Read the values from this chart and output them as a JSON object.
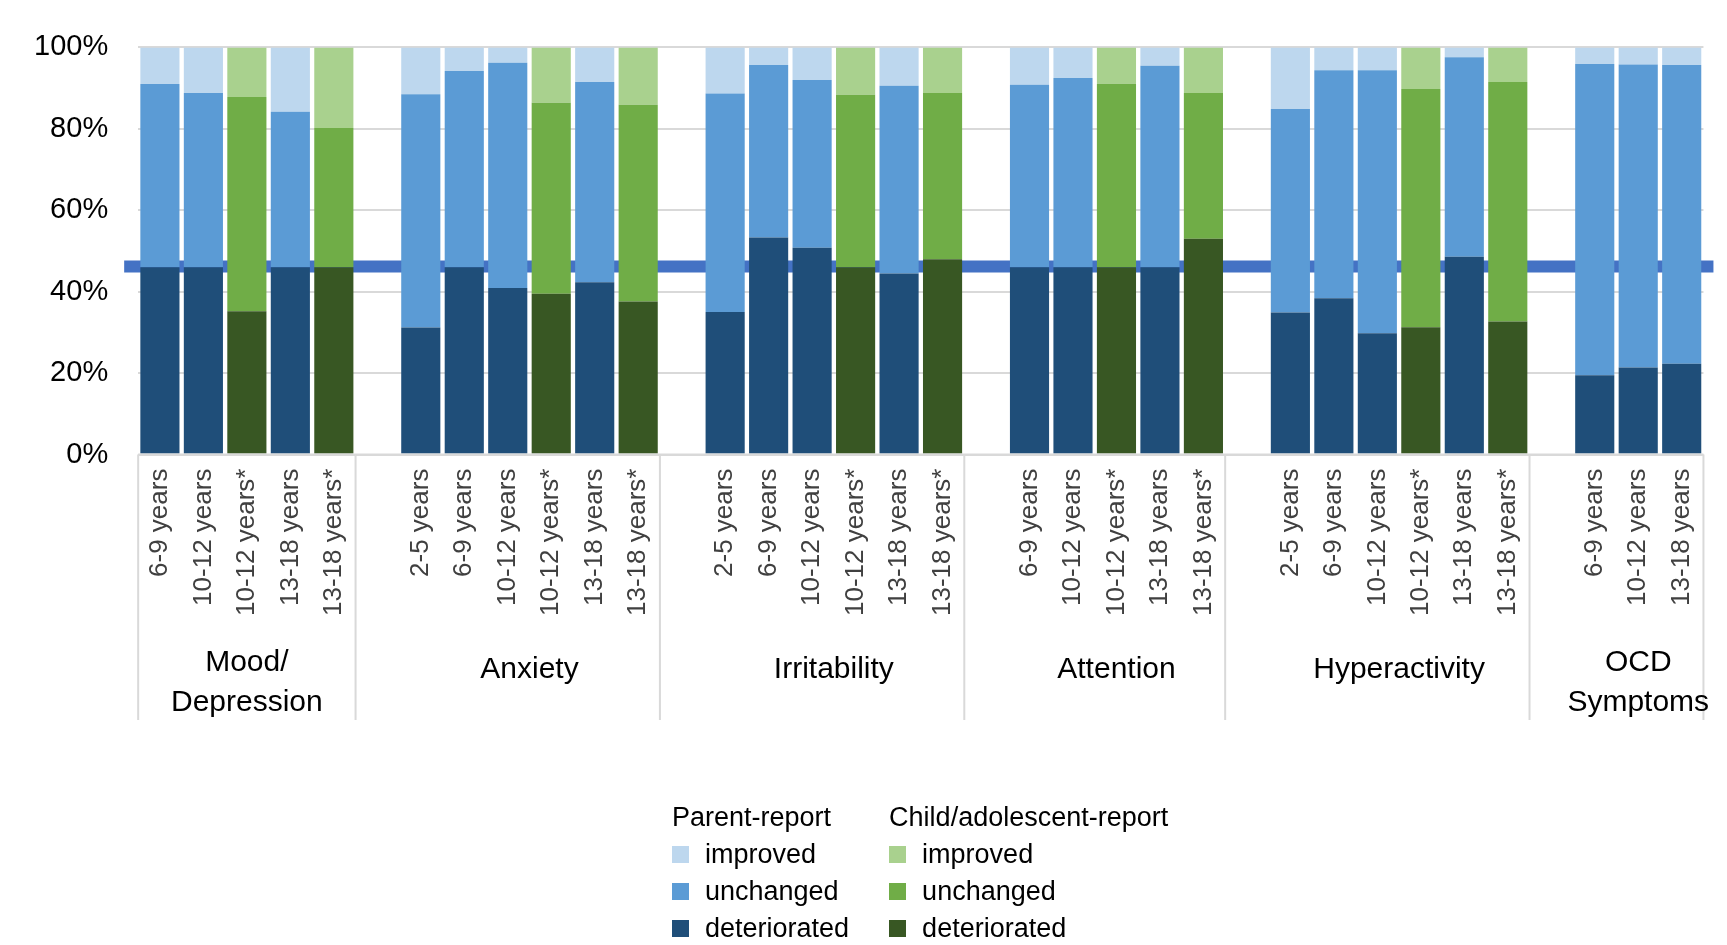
{
  "chart_data": {
    "type": "bar",
    "stacked": true,
    "grid": "y",
    "legend": "bottom",
    "categories": [
      "6-9 years",
      "10-12 years",
      "10-12 years*",
      "13-18 years",
      "13-18 years*",
      null,
      "2-5 years",
      "6-9 years",
      "10-12 years",
      "10-12 years*",
      "13-18 years",
      "13-18 years*",
      null,
      "2-5 years",
      "6-9 years",
      "10-12 years",
      "10-12 years*",
      "13-18 years",
      "13-18 years*",
      null,
      "6-9 years",
      "10-12 years",
      "10-12 years*",
      "13-18 years",
      "13-18 years*",
      null,
      "2-5 years",
      "6-9 years",
      "10-12 years",
      "10-12 years*",
      "13-18 years",
      "13-18 years*",
      null,
      "6-9 years",
      "10-12 years",
      "13-18 years"
    ],
    "series": [
      {
        "name": "deteriorated",
        "color": "#1f4e79",
        "values": [
          46,
          46,
          null,
          46,
          null,
          null,
          31.2,
          46,
          40.9,
          null,
          42.3,
          null,
          null,
          35,
          53.3,
          50.8,
          null,
          44.5,
          null,
          null,
          46,
          46,
          null,
          46,
          null,
          null,
          34.9,
          38.4,
          29.8,
          null,
          48.6,
          null,
          null,
          19.5,
          21.4,
          22.3
        ]
      },
      {
        "name": "unchanged",
        "color": "#5b9bd5",
        "values": [
          45,
          42.8,
          null,
          38.2,
          null,
          null,
          57.3,
          48.2,
          55.3,
          null,
          49.2,
          null,
          null,
          53.7,
          42.4,
          41.2,
          null,
          46.1,
          null,
          null,
          44.8,
          46.5,
          null,
          49.5,
          null,
          null,
          50,
          56,
          64.6,
          null,
          49,
          null,
          null,
          76.4,
          74.4,
          73.4
        ]
      },
      {
        "name": "improved",
        "color": "#bdd7ee",
        "values": [
          9,
          11.2,
          null,
          15.8,
          null,
          null,
          11.5,
          5.8,
          3.8,
          null,
          8.5,
          null,
          null,
          11.3,
          4.3,
          8,
          null,
          9.4,
          null,
          null,
          9.2,
          7.5,
          null,
          4.5,
          null,
          null,
          15.1,
          5.6,
          5.6,
          null,
          2.4,
          null,
          null,
          4.1,
          4.2,
          4.3
        ]
      },
      {
        "name": "deteriorated",
        "color": "#385723",
        "values": [
          null,
          null,
          35.2,
          null,
          46,
          null,
          null,
          null,
          null,
          39.5,
          null,
          37.6,
          null,
          null,
          null,
          null,
          46,
          null,
          48,
          null,
          null,
          null,
          46,
          null,
          53,
          null,
          null,
          null,
          null,
          31.3,
          null,
          32.7,
          null,
          null,
          null,
          null
        ]
      },
      {
        "name": "unchanged",
        "color": "#70ad47",
        "values": [
          null,
          null,
          52.6,
          null,
          34.2,
          null,
          null,
          null,
          null,
          46.9,
          null,
          48.3,
          null,
          null,
          null,
          null,
          42.4,
          null,
          40.8,
          null,
          null,
          null,
          45.1,
          null,
          35.8,
          null,
          null,
          null,
          null,
          58.5,
          null,
          58.8,
          null,
          null,
          null,
          null
        ]
      },
      {
        "name": "improved",
        "color": "#a9d18e",
        "values": [
          null,
          null,
          12.2,
          null,
          19.8,
          null,
          null,
          null,
          null,
          13.6,
          null,
          14.1,
          null,
          null,
          null,
          null,
          11.6,
          null,
          11.2,
          null,
          null,
          null,
          8.9,
          null,
          11.2,
          null,
          null,
          null,
          null,
          10.2,
          null,
          8.5,
          null,
          null,
          null,
          null
        ]
      }
    ],
    "ylim": [
      0,
      100
    ],
    "yticks": [
      {
        "value": 0,
        "label": "0%"
      },
      {
        "value": 20,
        "label": "20%"
      },
      {
        "value": 40,
        "label": "40%"
      },
      {
        "value": 60,
        "label": "60%"
      },
      {
        "value": 80,
        "label": "80%"
      },
      {
        "value": 100,
        "label": "100%"
      }
    ],
    "ref_lines": [
      {
        "axis": "y",
        "value": 46.2,
        "color": "#4472c4"
      }
    ],
    "annotations": [
      "Mood/\nDepression",
      "Anxiety",
      "Irritability",
      "Attention",
      "Hyperactivity",
      "OCD\nSymptoms",
      "Parent-report",
      "Child/adolescent-report"
    ]
  }
}
